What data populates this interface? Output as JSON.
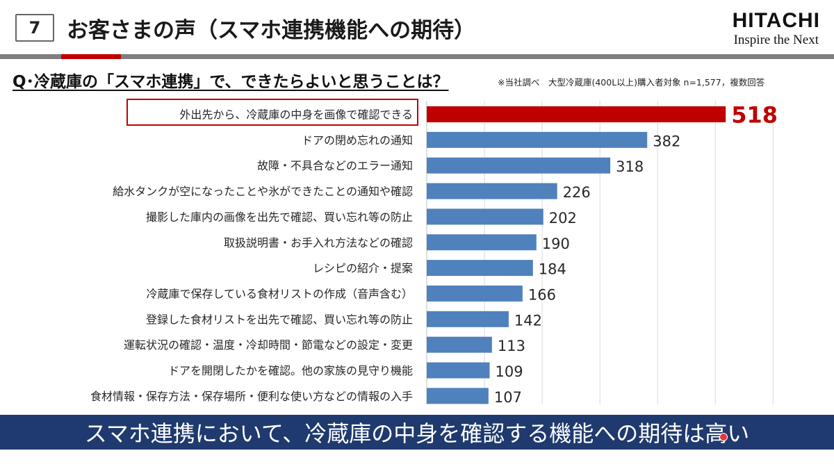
{
  "header": {
    "slide_number": "7",
    "title": "お客さまの声（スマホ連携機能への期待）",
    "logo_main": "HITACHI",
    "logo_sub": "Inspire the Next"
  },
  "question": "Q･冷蔵庫の「スマホ連携」で、できたらよいと思うことは？",
  "note": "※当社調べ　大型冷蔵庫(400L以上)購入者対象 n=1,577，複数回答",
  "banner": "スマホ連携において、冷蔵庫の中身を確認する機能への期待は高い",
  "colors": {
    "highlight": "#c00000",
    "bar": "#4f81bd",
    "banner": "#1f3a6e",
    "rule": "#7f7f7f"
  },
  "chart_data": {
    "type": "bar",
    "orientation": "horizontal",
    "categories": [
      "外出先から、冷蔵庫の中身を画像で確認できる",
      "ドアの閉め忘れの通知",
      "故障・不具合などのエラー通知",
      "給水タンクが空になったことや氷ができたことの通知や確認",
      "撮影した庫内の画像を出先で確認、買い忘れ等の防止",
      "取扱説明書・お手入れ方法などの確認",
      "レシピの紹介・提案",
      "冷蔵庫で保存している食材リストの作成（音声含む）",
      "登録した食材リストを出先で確認、買い忘れ等の防止",
      "運転状況の確認・温度・冷却時間・節電などの設定・変更",
      "ドアを開閉したかを確認。他の家族の見守り機能",
      "食材情報・保存方法・保存場所・便利な使い方などの情報の入手"
    ],
    "values": [
      518,
      382,
      318,
      226,
      202,
      190,
      184,
      166,
      142,
      113,
      109,
      107
    ],
    "value_labels": [
      "518",
      "382",
      "318",
      "226",
      "202",
      "190",
      "184",
      "166",
      "142",
      "113",
      "109",
      "107"
    ],
    "highlight_index": 0,
    "xlim": [
      0,
      600
    ],
    "grid": true
  }
}
